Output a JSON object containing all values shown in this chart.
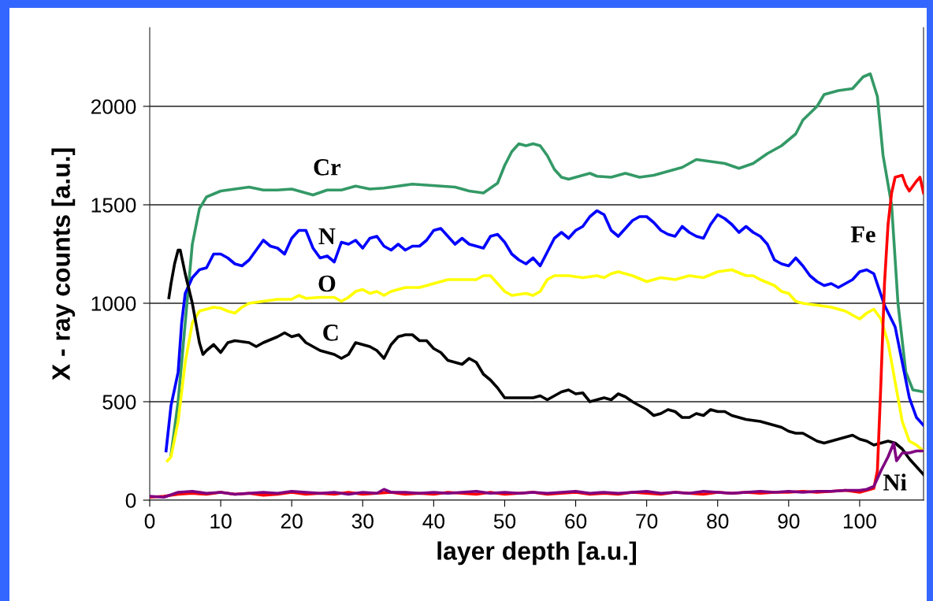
{
  "chart_data": {
    "type": "line",
    "xlabel": "layer depth [a.u.]",
    "ylabel": "X - ray counts [a.u.]",
    "xlim": [
      0,
      109
    ],
    "xticks": [
      0,
      10,
      20,
      30,
      40,
      50,
      60,
      70,
      80,
      90,
      100
    ],
    "ylim": [
      0,
      2400
    ],
    "yticks": [
      0,
      500,
      1000,
      1500,
      2000
    ],
    "grid": "y",
    "legend": false,
    "marker": "none",
    "line_style": "solid",
    "series": [
      {
        "name": "Cr",
        "color": "#339966",
        "x": [
          3,
          4,
          5,
          6,
          7,
          8,
          10,
          12,
          14,
          16,
          18,
          20,
          22,
          23,
          25,
          27,
          29,
          31,
          33,
          35,
          37,
          39,
          41,
          43,
          45,
          47,
          49,
          50,
          51,
          52,
          53,
          54,
          55,
          56,
          57,
          58,
          59,
          61,
          62,
          63,
          65,
          67,
          69,
          71,
          73,
          75,
          77,
          79,
          81,
          83,
          85,
          87,
          89,
          91,
          92,
          94,
          95,
          97,
          99,
          100.5,
          101.5,
          102.5,
          103.3,
          104.5,
          105.4,
          106.5,
          107.5,
          109
        ],
        "values": [
          230,
          500,
          900,
          1300,
          1480,
          1540,
          1570,
          1580,
          1590,
          1575,
          1575,
          1580,
          1560,
          1550,
          1575,
          1575,
          1595,
          1580,
          1585,
          1595,
          1605,
          1600,
          1595,
          1590,
          1570,
          1560,
          1610,
          1700,
          1770,
          1810,
          1800,
          1810,
          1800,
          1750,
          1680,
          1640,
          1630,
          1650,
          1660,
          1645,
          1640,
          1660,
          1640,
          1650,
          1670,
          1690,
          1730,
          1720,
          1710,
          1685,
          1710,
          1760,
          1800,
          1860,
          1930,
          2000,
          2060,
          2080,
          2090,
          2150,
          2165,
          2050,
          1750,
          1500,
          1000,
          650,
          560,
          550
        ]
      },
      {
        "name": "N",
        "color": "#0000ff",
        "x": [
          2.3,
          3,
          4,
          4.5,
          5,
          6,
          7,
          8,
          9,
          10,
          11,
          12,
          13,
          14,
          15,
          16,
          17,
          18,
          19,
          20,
          21,
          22,
          23,
          24,
          25,
          26,
          27,
          28,
          29,
          30,
          31,
          32,
          33,
          34,
          35,
          36,
          37,
          38,
          39,
          40,
          41,
          42,
          43,
          44,
          45,
          46,
          47,
          48,
          49,
          50,
          51,
          52,
          53,
          54,
          55,
          56,
          57,
          58,
          59,
          60,
          61,
          62,
          63,
          64,
          65,
          66,
          67,
          68,
          69,
          70,
          71,
          72,
          73,
          74,
          75,
          76,
          77,
          78,
          79,
          80,
          81,
          82,
          83,
          84,
          85,
          86,
          87,
          88,
          89,
          90,
          91,
          92,
          93,
          94,
          95,
          96,
          97,
          98,
          99,
          100,
          101,
          102,
          103.5,
          105,
          106,
          107,
          108,
          109
        ],
        "values": [
          250,
          480,
          650,
          900,
          1050,
          1130,
          1170,
          1180,
          1250,
          1250,
          1230,
          1200,
          1190,
          1220,
          1270,
          1320,
          1290,
          1280,
          1250,
          1330,
          1370,
          1370,
          1280,
          1230,
          1240,
          1210,
          1310,
          1300,
          1320,
          1280,
          1330,
          1340,
          1290,
          1270,
          1300,
          1270,
          1290,
          1290,
          1320,
          1370,
          1380,
          1340,
          1300,
          1330,
          1300,
          1290,
          1280,
          1340,
          1350,
          1310,
          1250,
          1220,
          1200,
          1230,
          1190,
          1260,
          1330,
          1360,
          1330,
          1370,
          1390,
          1440,
          1470,
          1450,
          1370,
          1340,
          1380,
          1420,
          1440,
          1440,
          1410,
          1370,
          1350,
          1340,
          1390,
          1360,
          1340,
          1330,
          1400,
          1450,
          1430,
          1400,
          1360,
          1390,
          1360,
          1340,
          1300,
          1220,
          1200,
          1190,
          1230,
          1190,
          1140,
          1110,
          1090,
          1100,
          1080,
          1100,
          1120,
          1160,
          1170,
          1150,
          990,
          880,
          700,
          520,
          420,
          380
        ]
      },
      {
        "name": "O",
        "color": "#ffff00",
        "x": [
          2.5,
          3,
          4,
          5,
          6,
          7,
          8,
          9,
          10,
          11,
          12,
          13,
          14,
          16,
          18,
          20,
          21,
          22,
          24,
          26,
          27,
          28,
          29,
          30,
          31,
          32,
          33,
          34,
          36,
          38,
          40,
          42,
          44,
          46,
          47,
          48,
          49,
          50,
          51,
          53,
          54,
          55,
          56,
          57,
          59,
          61,
          63,
          64,
          65,
          66,
          68,
          70,
          72,
          74,
          76,
          78,
          80,
          82,
          84,
          85,
          86,
          88,
          89,
          90,
          91,
          92,
          94,
          96,
          98,
          99,
          100,
          101,
          102,
          103,
          104,
          105,
          106,
          107,
          108,
          109
        ],
        "values": [
          200,
          220,
          400,
          700,
          900,
          960,
          970,
          980,
          975,
          960,
          950,
          980,
          1000,
          1010,
          1020,
          1020,
          1040,
          1025,
          1030,
          1030,
          1010,
          1030,
          1060,
          1070,
          1050,
          1060,
          1040,
          1060,
          1080,
          1080,
          1100,
          1120,
          1120,
          1120,
          1140,
          1140,
          1100,
          1060,
          1040,
          1050,
          1040,
          1060,
          1120,
          1140,
          1140,
          1130,
          1140,
          1130,
          1150,
          1160,
          1140,
          1110,
          1130,
          1120,
          1140,
          1130,
          1160,
          1170,
          1140,
          1140,
          1120,
          1090,
          1060,
          1050,
          1010,
          1000,
          990,
          980,
          960,
          940,
          920,
          950,
          970,
          920,
          800,
          600,
          400,
          300,
          280,
          250
        ]
      },
      {
        "name": "C",
        "color": "#000000",
        "x": [
          2.7,
          3,
          3.5,
          4,
          4.3,
          5,
          6,
          7,
          7.5,
          8,
          9,
          10,
          11,
          12,
          14,
          15,
          16,
          18,
          19,
          20,
          21,
          22,
          23,
          24,
          25,
          26,
          27,
          28,
          29,
          30,
          31,
          32,
          33,
          34,
          35,
          36,
          37,
          38,
          39,
          40,
          41,
          42,
          43,
          44,
          45,
          46,
          47,
          48,
          49,
          50,
          52,
          54,
          55,
          56,
          58,
          59,
          60,
          61,
          62,
          63,
          64,
          65,
          66,
          67,
          68,
          69,
          70,
          71,
          72,
          73,
          74,
          75,
          76,
          77,
          78,
          79,
          80,
          81,
          82,
          84,
          86,
          87,
          88,
          89,
          90,
          91,
          92,
          93,
          94,
          95,
          96,
          97,
          98,
          99,
          100,
          101,
          102,
          103,
          104,
          105,
          106,
          107,
          108,
          109
        ],
        "values": [
          1028,
          1100,
          1200,
          1270,
          1270,
          1150,
          1000,
          800,
          740,
          760,
          790,
          750,
          800,
          810,
          800,
          780,
          800,
          830,
          850,
          830,
          840,
          800,
          780,
          760,
          750,
          740,
          720,
          740,
          800,
          790,
          780,
          760,
          720,
          790,
          830,
          840,
          840,
          810,
          810,
          770,
          750,
          710,
          700,
          690,
          720,
          700,
          640,
          610,
          570,
          520,
          520,
          520,
          530,
          510,
          550,
          560,
          540,
          545,
          500,
          510,
          520,
          510,
          540,
          525,
          500,
          480,
          460,
          430,
          440,
          460,
          450,
          420,
          420,
          440,
          430,
          460,
          450,
          450,
          430,
          410,
          400,
          390,
          380,
          370,
          350,
          340,
          340,
          320,
          300,
          290,
          300,
          310,
          320,
          330,
          310,
          300,
          280,
          290,
          300,
          290,
          260,
          210,
          170,
          130
        ]
      },
      {
        "name": "Fe",
        "color": "#ff0000",
        "x": [
          0,
          2,
          4,
          6,
          8,
          10,
          12,
          14,
          16,
          18,
          20,
          22,
          24,
          26,
          28,
          30,
          32,
          34,
          36,
          38,
          40,
          42,
          44,
          46,
          48,
          50,
          52,
          54,
          56,
          58,
          60,
          62,
          64,
          66,
          68,
          70,
          72,
          74,
          76,
          78,
          80,
          82,
          84,
          86,
          88,
          90,
          92,
          94,
          96,
          98,
          100,
          101,
          102,
          102.5,
          103,
          103.5,
          104,
          104.5,
          105,
          106,
          106.5,
          107,
          108,
          108.5,
          109
        ],
        "values": [
          15,
          20,
          30,
          35,
          30,
          40,
          30,
          35,
          25,
          30,
          40,
          30,
          35,
          30,
          40,
          30,
          35,
          40,
          30,
          35,
          30,
          40,
          35,
          30,
          40,
          30,
          35,
          40,
          30,
          35,
          40,
          30,
          35,
          30,
          40,
          35,
          30,
          40,
          35,
          30,
          40,
          35,
          40,
          35,
          40,
          40,
          45,
          40,
          45,
          50,
          40,
          50,
          60,
          150,
          600,
          1100,
          1400,
          1560,
          1640,
          1650,
          1600,
          1570,
          1620,
          1640,
          1560
        ]
      },
      {
        "name": "Ni",
        "color": "#800080",
        "x": [
          0,
          2,
          4,
          6,
          8,
          10,
          12,
          14,
          16,
          18,
          20,
          22,
          24,
          26,
          28,
          30,
          32,
          33,
          34,
          36,
          38,
          40,
          42,
          44,
          46,
          48,
          50,
          52,
          54,
          56,
          58,
          60,
          62,
          64,
          66,
          68,
          70,
          72,
          74,
          76,
          78,
          80,
          82,
          84,
          86,
          88,
          90,
          92,
          94,
          96,
          98,
          100,
          101,
          102,
          103,
          104,
          104.8,
          105.2,
          106,
          107,
          108,
          109
        ],
        "values": [
          20,
          15,
          40,
          45,
          35,
          40,
          30,
          35,
          40,
          35,
          45,
          40,
          35,
          40,
          30,
          40,
          35,
          55,
          40,
          40,
          35,
          40,
          35,
          40,
          45,
          35,
          40,
          35,
          40,
          35,
          40,
          45,
          35,
          40,
          35,
          40,
          45,
          35,
          40,
          35,
          45,
          40,
          35,
          40,
          45,
          40,
          45,
          40,
          45,
          45,
          50,
          50,
          55,
          70,
          150,
          220,
          290,
          200,
          240,
          240,
          250,
          250
        ]
      }
    ]
  }
}
